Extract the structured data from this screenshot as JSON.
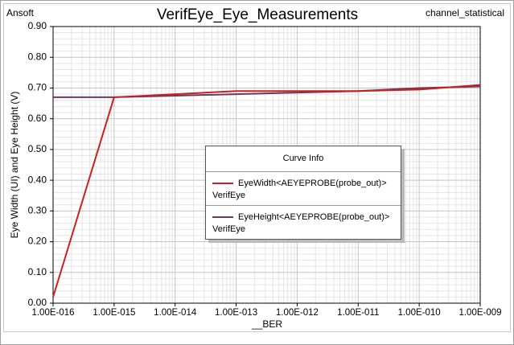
{
  "chart_data": {
    "type": "line",
    "title": "VerifEye_Eye_Measurements",
    "corner_left": "Ansoft",
    "corner_right": "channel_statistical",
    "x_label": "__BER",
    "y_label": "Eye Width (UI) and Eye Height (V)",
    "legend_title": "Curve Info",
    "xscale": "log",
    "grid": true,
    "x": [
      1e-16,
      1e-15,
      1e-14,
      1e-13,
      1e-12,
      1e-11,
      1e-10,
      1e-09
    ],
    "series": [
      {
        "name": "EyeWidth<AEYEPROBE(probe_out)>",
        "solution": "VerifEye",
        "color": "#cc1f1f",
        "values": [
          0.02,
          0.67,
          0.68,
          0.69,
          0.69,
          0.69,
          0.695,
          0.71
        ]
      },
      {
        "name": "EyeHeight<AEYEPROBE(probe_out)>",
        "solution": "VerifEye",
        "color": "#6b3a5e",
        "values": [
          0.67,
          0.67,
          0.675,
          0.68,
          0.685,
          0.69,
          0.7,
          0.705
        ]
      }
    ],
    "xlim": [
      1e-16,
      1e-09
    ],
    "xticks": [
      {
        "value": 1e-16,
        "label": "1.00E-016"
      },
      {
        "value": 1e-15,
        "label": "1.00E-015"
      },
      {
        "value": 1e-14,
        "label": "1.00E-014"
      },
      {
        "value": 1e-13,
        "label": "1.00E-013"
      },
      {
        "value": 1e-12,
        "label": "1.00E-012"
      },
      {
        "value": 1e-11,
        "label": "1.00E-011"
      },
      {
        "value": 1e-10,
        "label": "1.00E-010"
      },
      {
        "value": 1e-09,
        "label": "1.00E-009"
      }
    ],
    "ylim": [
      0,
      0.9
    ],
    "yticks": [
      {
        "value": 0,
        "label": "0.00"
      },
      {
        "value": 0.1,
        "label": "0.10"
      },
      {
        "value": 0.2,
        "label": "0.20"
      },
      {
        "value": 0.3,
        "label": "0.30"
      },
      {
        "value": 0.4,
        "label": "0.40"
      },
      {
        "value": 0.5,
        "label": "0.50"
      },
      {
        "value": 0.6,
        "label": "0.60"
      },
      {
        "value": 0.7,
        "label": "0.70"
      },
      {
        "value": 0.8,
        "label": "0.80"
      },
      {
        "value": 0.9,
        "label": "0.90"
      }
    ]
  }
}
